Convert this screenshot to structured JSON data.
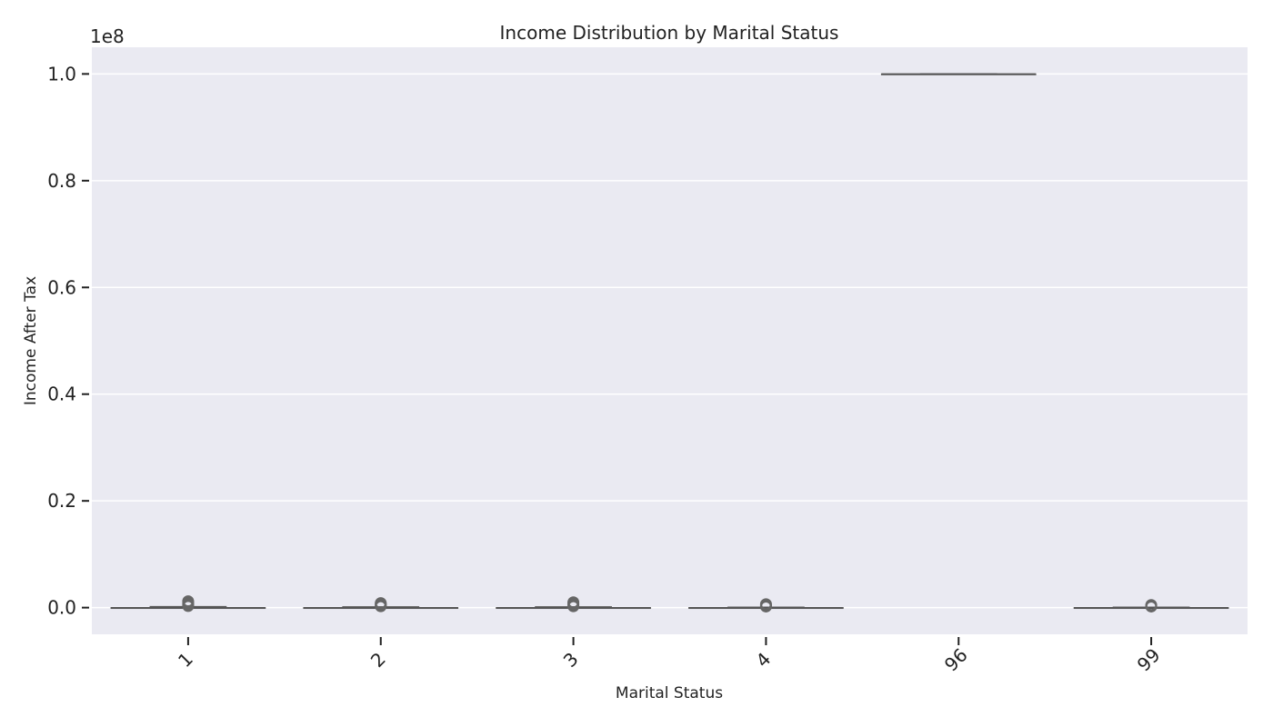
{
  "chart_data": {
    "type": "box",
    "title": "Income Distribution by Marital Status",
    "xlabel": "Marital Status",
    "ylabel": "Income After Tax",
    "y_offset_label": "1e8",
    "ylim": [
      -5000000,
      105000000
    ],
    "y_ticks": [
      0,
      20000000,
      40000000,
      60000000,
      80000000,
      100000000
    ],
    "y_tick_labels": [
      "0.0",
      "0.2",
      "0.4",
      "0.6",
      "0.8",
      "1.0"
    ],
    "categories": [
      "1",
      "2",
      "3",
      "4",
      "96",
      "99"
    ],
    "boxes": [
      {
        "category": "1",
        "q1": 0,
        "median": 0,
        "q3": 0,
        "whisker_low": 0,
        "whisker_high": 200000,
        "outliers": [
          300000,
          450000,
          600000,
          800000,
          1000000,
          1200000
        ]
      },
      {
        "category": "2",
        "q1": 0,
        "median": 0,
        "q3": 0,
        "whisker_low": 0,
        "whisker_high": 150000,
        "outliers": [
          250000,
          400000,
          550000,
          700000,
          850000
        ]
      },
      {
        "category": "3",
        "q1": 0,
        "median": 0,
        "q3": 0,
        "whisker_low": 0,
        "whisker_high": 150000,
        "outliers": [
          250000,
          400000,
          600000,
          800000,
          1000000
        ]
      },
      {
        "category": "4",
        "q1": 0,
        "median": 0,
        "q3": 0,
        "whisker_low": 0,
        "whisker_high": 100000,
        "outliers": [
          200000,
          350000,
          500000,
          650000
        ]
      },
      {
        "category": "96",
        "q1": 100000000,
        "median": 100000000,
        "q3": 100000000,
        "whisker_low": 100000000,
        "whisker_high": 100000000,
        "outliers": []
      },
      {
        "category": "99",
        "q1": 0,
        "median": 0,
        "q3": 0,
        "whisker_low": 0,
        "whisker_high": 100000,
        "outliers": [
          200000,
          350000,
          500000
        ]
      }
    ],
    "grid": true,
    "colors": {
      "plot_background": "#EAEAF2",
      "grid": "#FFFFFF",
      "box_line": "#555555",
      "outlier": "#666666",
      "text": "#222222"
    }
  }
}
